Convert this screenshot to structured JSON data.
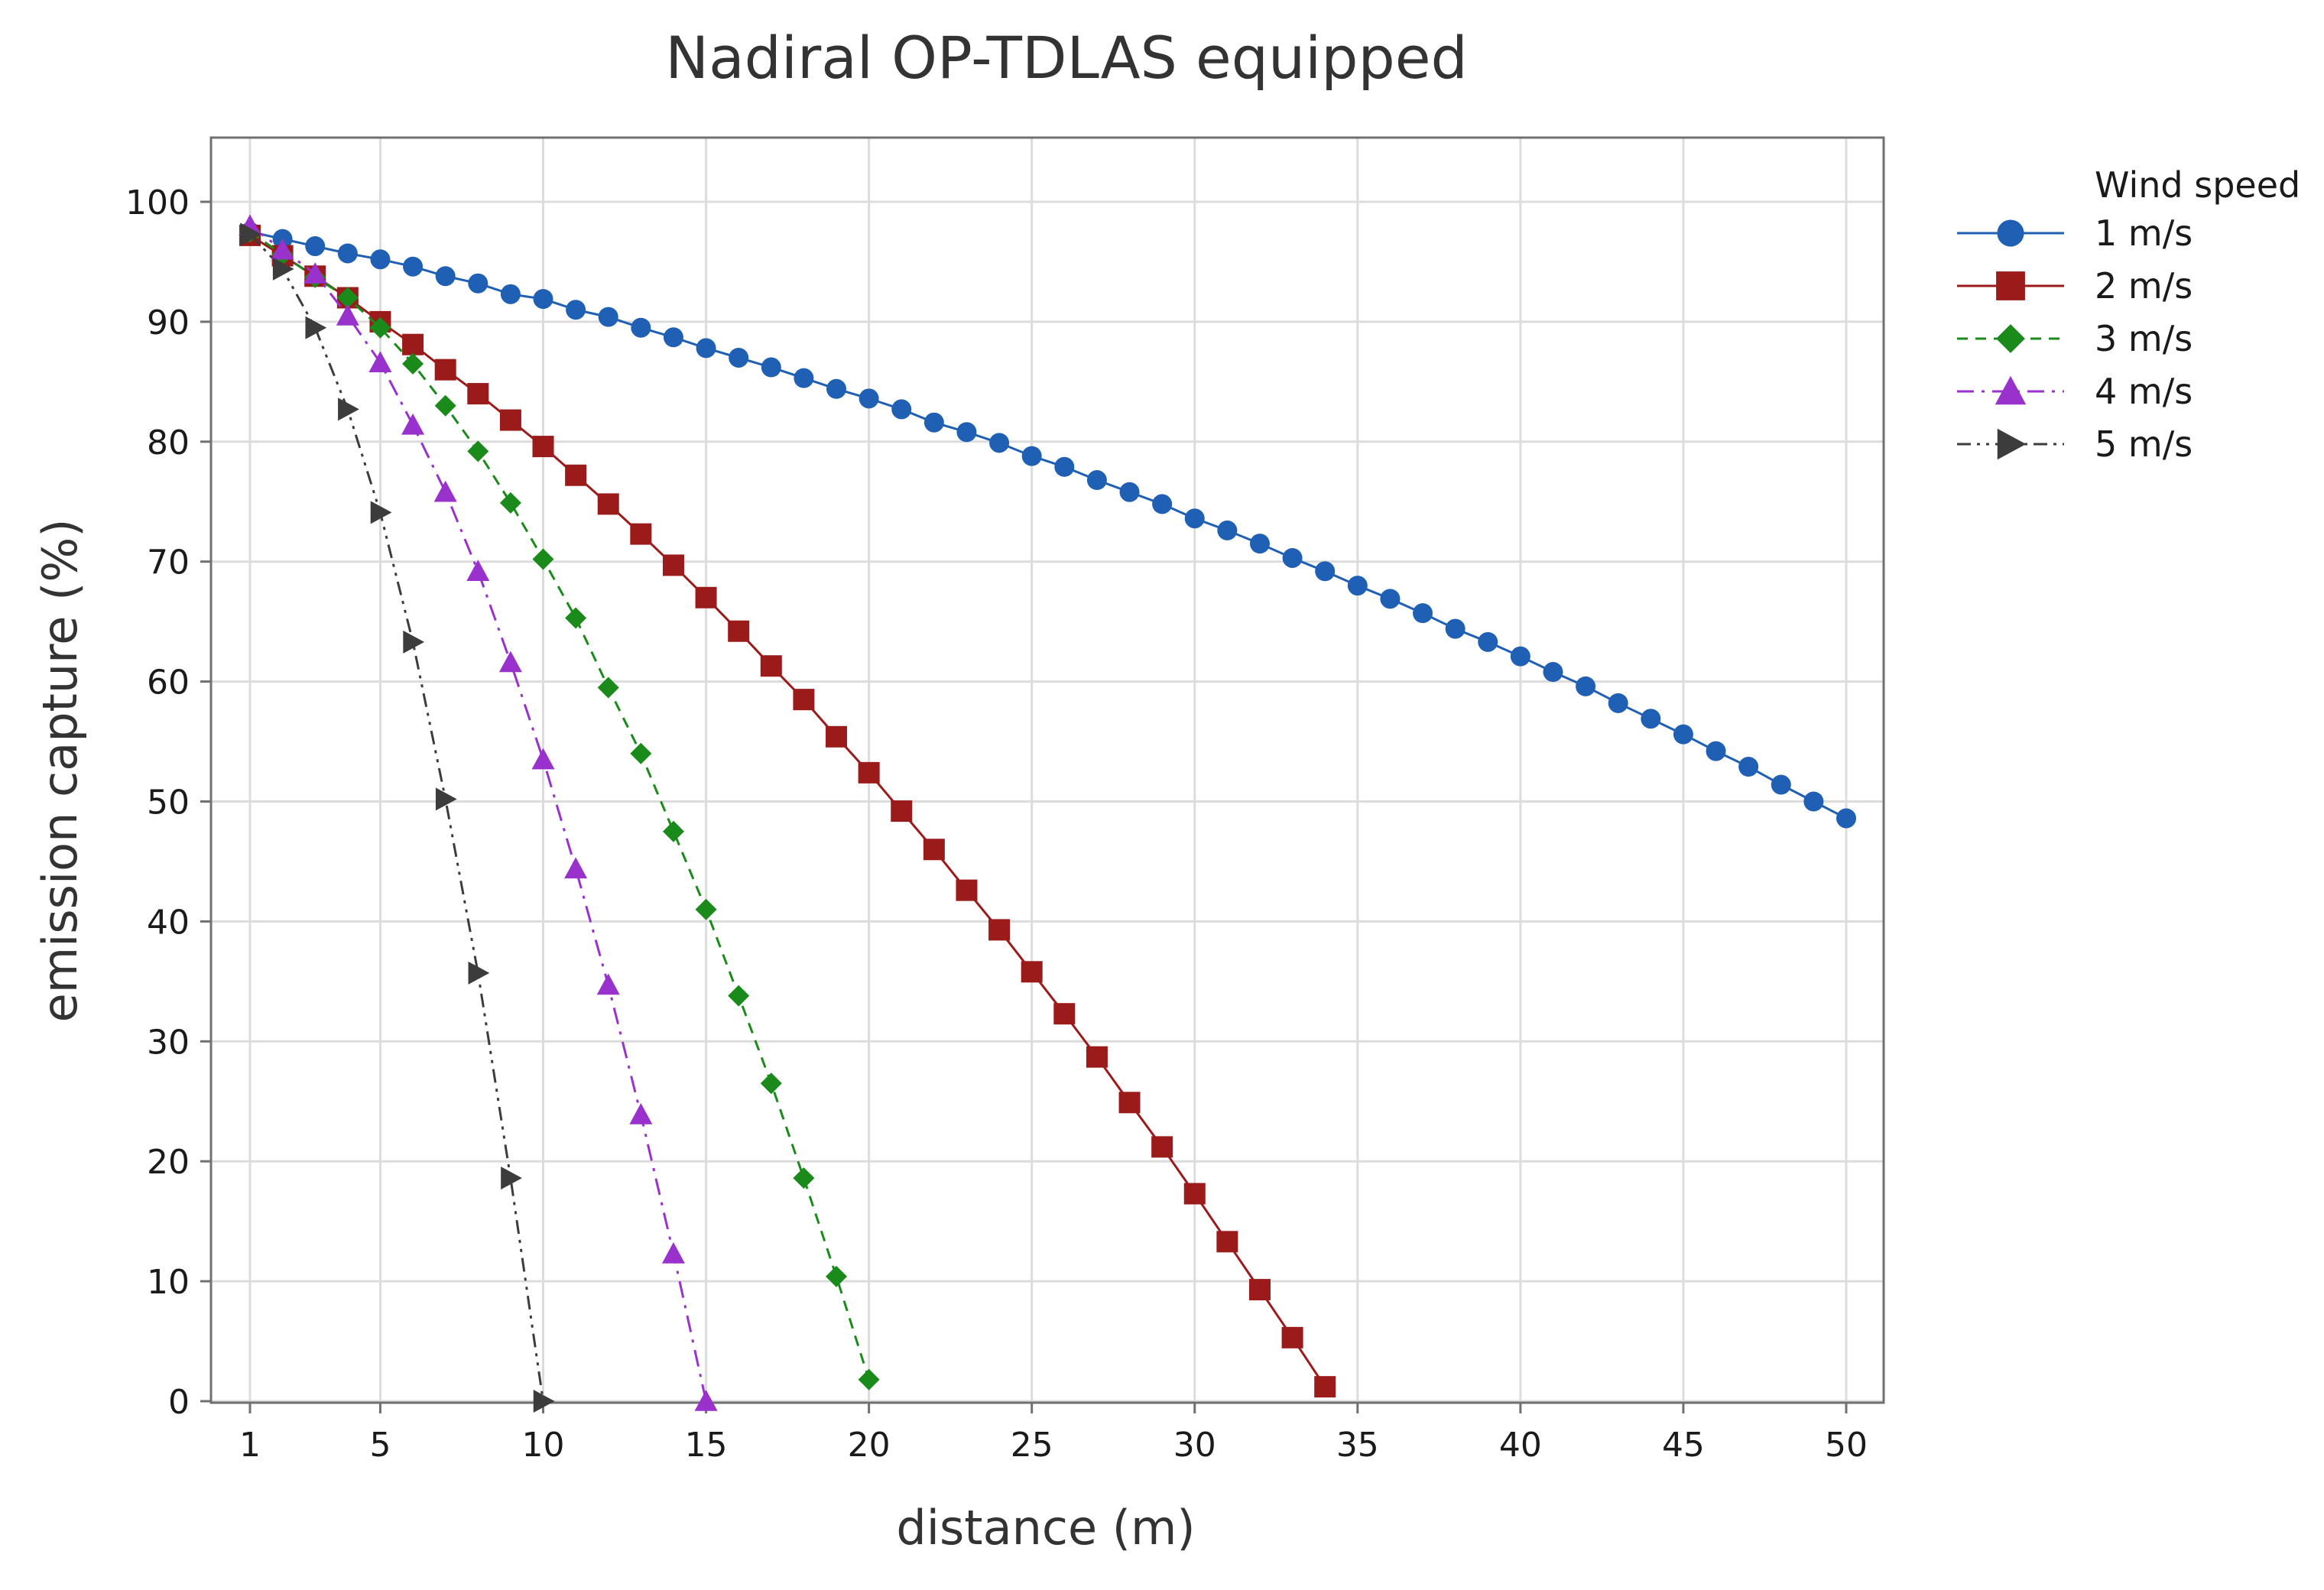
{
  "chart_data": {
    "type": "line",
    "title": "Nadiral OP-TDLAS equipped",
    "xlabel": "distance (m)",
    "ylabel": "emission capture (%)",
    "xlim": [
      0,
      51
    ],
    "ylim": [
      0,
      100
    ],
    "x_ticks": [
      1,
      5,
      10,
      15,
      20,
      25,
      30,
      35,
      40,
      45,
      50
    ],
    "y_ticks": [
      0,
      10,
      20,
      30,
      40,
      50,
      60,
      70,
      80,
      90,
      100
    ],
    "grid": true,
    "legend": {
      "title": "Wind speed",
      "placement": "top-right outside"
    },
    "series": [
      {
        "name": "1 m/s",
        "color": "#1f5fb4",
        "marker": "circle",
        "dash": "solid",
        "x": [
          1,
          2,
          3,
          4,
          5,
          6,
          7,
          8,
          9,
          10,
          11,
          12,
          13,
          14,
          15,
          16,
          17,
          18,
          19,
          20,
          21,
          22,
          23,
          24,
          25,
          26,
          27,
          28,
          29,
          30,
          31,
          32,
          33,
          34,
          35,
          36,
          37,
          38,
          39,
          40,
          41,
          42,
          43,
          44,
          45,
          46,
          47,
          48,
          49,
          50
        ],
        "values": [
          97.5,
          96.9,
          96.3,
          95.7,
          95.2,
          94.6,
          93.8,
          93.2,
          92.3,
          91.9,
          91.0,
          90.4,
          89.5,
          88.7,
          87.8,
          87.0,
          86.2,
          85.3,
          84.4,
          83.6,
          82.7,
          81.6,
          80.8,
          79.9,
          78.8,
          77.9,
          76.8,
          75.8,
          74.8,
          73.6,
          72.6,
          71.5,
          70.3,
          69.2,
          68.0,
          66.9,
          65.7,
          64.4,
          63.3,
          62.1,
          60.8,
          59.6,
          58.2,
          56.9,
          55.6,
          54.2,
          52.9,
          51.4,
          50.0,
          48.6
        ]
      },
      {
        "name": "2 m/s",
        "color": "#9b1b1b",
        "marker": "square",
        "dash": "solid",
        "x": [
          1,
          2,
          3,
          4,
          5,
          6,
          7,
          8,
          9,
          10,
          11,
          12,
          13,
          14,
          15,
          16,
          17,
          18,
          19,
          20,
          21,
          22,
          23,
          24,
          25,
          26,
          27,
          28,
          29,
          30,
          31,
          32,
          33,
          34
        ],
        "values": [
          97.2,
          95.5,
          93.8,
          92.0,
          90.0,
          88.1,
          86.0,
          84.0,
          81.8,
          79.6,
          77.2,
          74.8,
          72.3,
          69.7,
          67.0,
          64.2,
          61.3,
          58.5,
          55.4,
          52.4,
          49.2,
          46.0,
          42.6,
          39.3,
          35.8,
          32.3,
          28.7,
          24.9,
          21.2,
          17.3,
          13.3,
          9.3,
          5.3,
          1.2
        ]
      },
      {
        "name": "3 m/s",
        "color": "#1a8a1a",
        "marker": "diamond",
        "dash": "dash",
        "x": [
          1,
          2,
          3,
          4,
          5,
          6,
          7,
          8,
          9,
          10,
          11,
          12,
          13,
          14,
          15,
          16,
          17,
          18,
          19,
          20
        ],
        "values": [
          97.5,
          95.6,
          93.7,
          92.0,
          89.5,
          86.5,
          83.0,
          79.2,
          74.9,
          70.2,
          65.3,
          59.5,
          54.0,
          47.5,
          41.0,
          33.8,
          26.5,
          18.6,
          10.4,
          1.8
        ]
      },
      {
        "name": "4 m/s",
        "color": "#9932cc",
        "marker": "triangle",
        "dash": "dashdot",
        "x": [
          1,
          2,
          3,
          4,
          5,
          6,
          7,
          8,
          9,
          10,
          11,
          12,
          13,
          14,
          15
        ],
        "values": [
          98.0,
          96.0,
          94.0,
          90.5,
          86.6,
          81.4,
          75.8,
          69.2,
          61.6,
          53.5,
          44.4,
          34.7,
          23.9,
          12.3,
          0.0
        ]
      },
      {
        "name": "5 m/s",
        "color": "#3c3c3c",
        "marker": "arrow-right",
        "dash": "dashdotdot",
        "x": [
          1,
          2,
          3,
          4,
          5,
          6,
          7,
          8,
          9,
          10
        ],
        "values": [
          97.3,
          94.4,
          89.5,
          82.7,
          74.1,
          63.3,
          50.2,
          35.7,
          18.6,
          0.0
        ]
      }
    ]
  }
}
